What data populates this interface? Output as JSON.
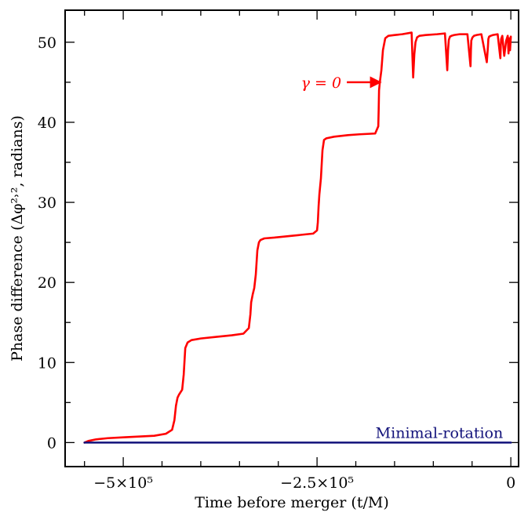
{
  "chart_data": {
    "type": "line",
    "xlabel": "Time before merger (t/M)",
    "ylabel": "Phase difference (Δφ²˒², radians)",
    "xlim": [
      -575000,
      10000
    ],
    "ylim": [
      -3,
      54
    ],
    "grid": false,
    "x_ticks": [
      {
        "value": -500000,
        "label": "−5×10⁵"
      },
      {
        "value": -250000,
        "label": "−2.5×10⁵"
      },
      {
        "value": 0,
        "label": "0"
      }
    ],
    "y_ticks": [
      {
        "value": 0,
        "label": "0"
      },
      {
        "value": 10,
        "label": "10"
      },
      {
        "value": 20,
        "label": "20"
      },
      {
        "value": 30,
        "label": "30"
      },
      {
        "value": 40,
        "label": "40"
      },
      {
        "value": 50,
        "label": "50"
      }
    ],
    "series": [
      {
        "name": "γ = 0",
        "color": "#ff0000",
        "x": [
          -550000,
          -545000,
          -535000,
          -520000,
          -500000,
          -480000,
          -460000,
          -445000,
          -437000,
          -434000,
          -432000,
          -430000,
          -428000,
          -424000,
          -422000,
          -420000,
          -417000,
          -412000,
          -400000,
          -380000,
          -360000,
          -345000,
          -338000,
          -336000,
          -335000,
          -333000,
          -331000,
          -329000,
          -327000,
          -325000,
          -323000,
          -318000,
          -305000,
          -285000,
          -265000,
          -255000,
          -250000,
          -249000,
          -248000,
          -247000,
          -246000,
          -245000,
          -243000,
          -241000,
          -238000,
          -228000,
          -210000,
          -195000,
          -175000,
          -171000,
          -170500,
          -170000,
          -169000,
          -167000,
          -165000,
          -162000,
          -158000,
          -150000,
          -140000,
          -128000,
          -126000,
          -124500,
          -123000,
          -121000,
          -118000,
          -110000,
          -95000,
          -85000,
          -82000,
          -81000,
          -80000,
          -78500,
          -76500,
          -73000,
          -66000,
          -56000,
          -52000,
          -51500,
          -51000,
          -49500,
          -47500,
          -44000,
          -38000,
          -31000,
          -29500,
          -29000,
          -28000,
          -26000,
          -23000,
          -17000,
          -13500,
          -13000,
          -12500,
          -11000,
          -8500,
          -6000,
          -4000,
          -3000,
          -2000,
          -1000,
          0
        ],
        "y": [
          0.0,
          0.2,
          0.4,
          0.55,
          0.65,
          0.75,
          0.85,
          1.1,
          1.6,
          2.8,
          4.6,
          5.6,
          6.0,
          6.6,
          8.5,
          11.8,
          12.5,
          12.8,
          13.0,
          13.2,
          13.4,
          13.6,
          14.3,
          16.0,
          17.5,
          18.5,
          19.3,
          21.0,
          24.0,
          25.0,
          25.3,
          25.5,
          25.6,
          25.8,
          26.0,
          26.1,
          26.5,
          27.5,
          29.5,
          31.0,
          32.0,
          33.0,
          36.5,
          37.8,
          38.0,
          38.2,
          38.4,
          38.5,
          38.6,
          39.5,
          41.5,
          44.0,
          45.0,
          46.5,
          49.0,
          50.5,
          50.8,
          50.9,
          51.0,
          51.2,
          45.6,
          48.5,
          50.0,
          50.6,
          50.8,
          50.9,
          51.0,
          51.1,
          46.5,
          49.0,
          50.3,
          50.7,
          50.8,
          50.9,
          51.0,
          51.0,
          47.0,
          49.0,
          50.2,
          50.6,
          50.8,
          50.9,
          51.0,
          47.5,
          49.5,
          50.4,
          50.7,
          50.8,
          50.9,
          51.0,
          48.0,
          49.5,
          50.4,
          50.8,
          48.3,
          50.2,
          50.8,
          48.6,
          50.5,
          49.0,
          50.7
        ]
      },
      {
        "name": "Minimal-rotation",
        "color": "#11117a",
        "x": [
          -550000,
          0
        ],
        "y": [
          0,
          0
        ]
      }
    ],
    "annotations": [
      {
        "series": "γ = 0",
        "text": "γ = 0",
        "arrow_to": {
          "x": -166000,
          "y": 45
        }
      },
      {
        "series": "Minimal-rotation",
        "text": "Minimal-rotation"
      }
    ]
  }
}
